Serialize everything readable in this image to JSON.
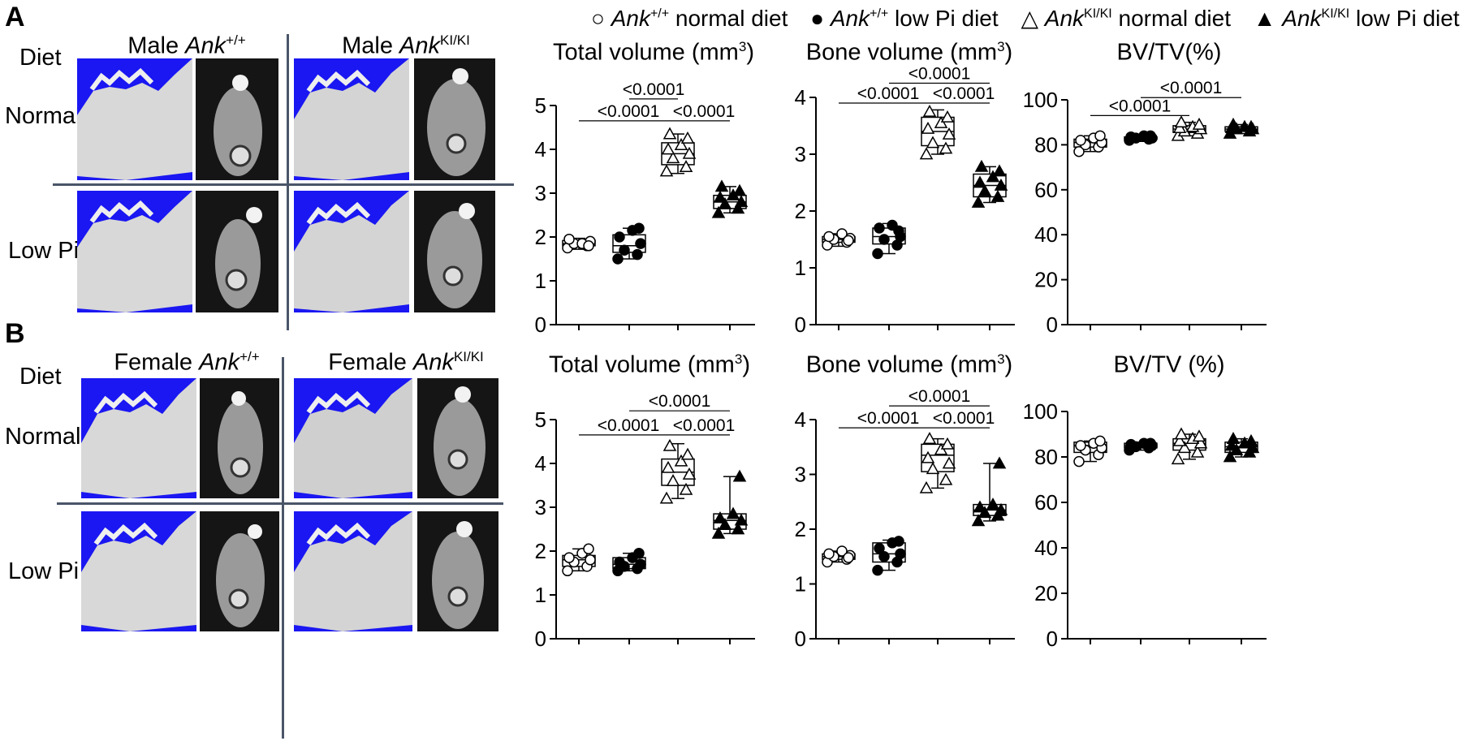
{
  "panels": [
    {
      "letter": "A",
      "diet_label": "Diet",
      "row_labels": [
        "Normal",
        "Low Pi"
      ],
      "columns": [
        {
          "prefix": "Male ",
          "gene": "Ank",
          "sup": "+/+"
        },
        {
          "prefix": "Male ",
          "gene": "Ank",
          "sup": "KI/KI"
        }
      ]
    },
    {
      "letter": "B",
      "diet_label": "Diet",
      "row_labels": [
        "Normal",
        "Low Pi"
      ],
      "columns": [
        {
          "prefix": "Female ",
          "gene": "Ank",
          "sup": "+/+"
        },
        {
          "prefix": "Female ",
          "gene": "Ank",
          "sup": "KI/KI"
        }
      ]
    }
  ],
  "legend": [
    {
      "marker": "○",
      "gene": "Ank",
      "sup": "+/+",
      "text": " normal diet"
    },
    {
      "marker": "●",
      "gene": "Ank",
      "sup": "+/+",
      "text": " low Pi diet"
    },
    {
      "marker": "△",
      "gene": "Ank",
      "sup": "KI/KI",
      "text": " normal diet"
    },
    {
      "marker": "▲",
      "gene": "Ank",
      "sup": "KI/KI",
      "text": " low Pi diet"
    }
  ],
  "chart_titles": [
    {
      "main": "Total volume (mm",
      "sup": "3",
      "end": ")"
    },
    {
      "main": "Bone volume (mm",
      "sup": "3",
      "end": ")"
    },
    {
      "main": "BV/TV(%)",
      "sup": "",
      "end": ""
    },
    {
      "main": "Total volume (mm",
      "sup": "3",
      "end": ")"
    },
    {
      "main": "Bone volume (mm",
      "sup": "3",
      "end": ")"
    },
    {
      "main": "BV/TV (%)",
      "sup": "",
      "end": ""
    }
  ],
  "colors": {
    "dark_marker": "#000000",
    "blue_background": "#1a17f2",
    "ct_background": "#151515",
    "divider": "#4a5568"
  },
  "chart_data": [
    {
      "type": "scatter",
      "panel": "A",
      "ylim": [
        0,
        5
      ],
      "yticks": [
        0,
        1,
        2,
        3,
        4,
        5
      ],
      "groups": [
        {
          "marker": "open-circle",
          "points": [
            1.75,
            1.8,
            1.85,
            1.9,
            1.95,
            1.85,
            1.8
          ],
          "box": [
            1.72,
            1.8,
            1.85,
            1.92,
            1.97
          ]
        },
        {
          "marker": "filled-circle",
          "points": [
            1.5,
            1.6,
            1.7,
            1.85,
            2.0,
            2.15,
            2.2
          ],
          "box": [
            1.5,
            1.65,
            1.8,
            2.05,
            2.2
          ]
        },
        {
          "marker": "open-triangle",
          "points": [
            3.5,
            3.6,
            3.8,
            3.9,
            4.0,
            4.1,
            4.25,
            4.35
          ],
          "box": [
            3.45,
            3.65,
            3.9,
            4.15,
            4.35
          ]
        },
        {
          "marker": "filled-triangle",
          "points": [
            2.55,
            2.65,
            2.75,
            2.8,
            2.9,
            2.95,
            3.05,
            3.15
          ],
          "box": [
            2.55,
            2.65,
            2.8,
            2.95,
            3.15
          ]
        }
      ],
      "annotations": [
        {
          "from": 0,
          "to": 2,
          "y": 4.65,
          "text": "<0.0001"
        },
        {
          "from": 2,
          "to": 3,
          "y": 4.65,
          "text": "<0.0001"
        },
        {
          "from": 1,
          "to": 2,
          "y": 5.15,
          "text": "<0.0001"
        }
      ]
    },
    {
      "type": "scatter",
      "panel": "A",
      "ylim": [
        0,
        4
      ],
      "yticks": [
        0,
        1,
        2,
        3,
        4
      ],
      "groups": [
        {
          "marker": "open-circle",
          "points": [
            1.4,
            1.45,
            1.5,
            1.52,
            1.55,
            1.6,
            1.48
          ],
          "box": [
            1.38,
            1.45,
            1.5,
            1.55,
            1.6
          ]
        },
        {
          "marker": "filled-circle",
          "points": [
            1.25,
            1.4,
            1.5,
            1.55,
            1.7,
            1.75,
            1.65
          ],
          "box": [
            1.25,
            1.42,
            1.55,
            1.7,
            1.78
          ]
        },
        {
          "marker": "open-triangle",
          "points": [
            3.0,
            3.1,
            3.2,
            3.35,
            3.45,
            3.55,
            3.65,
            3.75
          ],
          "box": [
            3.0,
            3.15,
            3.4,
            3.65,
            3.78
          ]
        },
        {
          "marker": "filled-triangle",
          "points": [
            2.15,
            2.25,
            2.35,
            2.45,
            2.5,
            2.6,
            2.7,
            2.78
          ],
          "box": [
            2.15,
            2.25,
            2.45,
            2.65,
            2.78
          ]
        }
      ],
      "annotations": [
        {
          "from": 0,
          "to": 2,
          "y": 3.9,
          "text": "<0.0001"
        },
        {
          "from": 2,
          "to": 3,
          "y": 3.9,
          "text": "<0.0001"
        },
        {
          "from": 1,
          "to": 3,
          "y": 4.25,
          "text": "<0.0001"
        }
      ]
    },
    {
      "type": "scatter",
      "panel": "A",
      "ylim": [
        0,
        100
      ],
      "yticks": [
        0,
        20,
        40,
        60,
        80,
        100
      ],
      "groups": [
        {
          "marker": "open-circle",
          "points": [
            77,
            79,
            80,
            81,
            82,
            83,
            84
          ],
          "box": [
            77,
            79,
            81,
            82.5,
            84
          ]
        },
        {
          "marker": "filled-circle",
          "points": [
            82,
            82.5,
            83,
            83,
            83.5,
            84,
            84
          ],
          "box": [
            81.5,
            82.5,
            83,
            83.5,
            84
          ]
        },
        {
          "marker": "open-triangle",
          "points": [
            84,
            85,
            86,
            87,
            87.5,
            88,
            89,
            90
          ],
          "box": [
            84,
            85.5,
            87,
            88.5,
            90
          ]
        },
        {
          "marker": "filled-triangle",
          "points": [
            85,
            86,
            87,
            87,
            87.5,
            88,
            88,
            89
          ],
          "box": [
            85,
            86,
            87,
            88,
            89
          ]
        }
      ],
      "annotations": [
        {
          "from": 0,
          "to": 2,
          "y": 93,
          "text": "<0.0001"
        },
        {
          "from": 1,
          "to": 3,
          "y": 101,
          "text": "<0.0001"
        }
      ]
    },
    {
      "type": "scatter",
      "panel": "B",
      "ylim": [
        0,
        5
      ],
      "yticks": [
        0,
        1,
        2,
        3,
        4,
        5
      ],
      "groups": [
        {
          "marker": "open-circle",
          "points": [
            1.55,
            1.65,
            1.75,
            1.8,
            1.85,
            1.95,
            2.05
          ],
          "box": [
            1.55,
            1.65,
            1.8,
            1.9,
            2.05
          ]
        },
        {
          "marker": "filled-circle",
          "points": [
            1.55,
            1.6,
            1.65,
            1.7,
            1.75,
            1.85,
            1.95
          ],
          "box": [
            1.55,
            1.6,
            1.7,
            1.85,
            1.95
          ]
        },
        {
          "marker": "open-triangle",
          "points": [
            3.2,
            3.4,
            3.6,
            3.75,
            3.9,
            4.05,
            4.2,
            4.4
          ],
          "box": [
            3.2,
            3.5,
            3.8,
            4.1,
            4.45
          ]
        },
        {
          "marker": "filled-triangle",
          "points": [
            2.4,
            2.5,
            2.6,
            2.7,
            2.75,
            2.85,
            3.7
          ],
          "box": [
            2.4,
            2.5,
            2.7,
            2.85,
            3.7
          ]
        }
      ],
      "annotations": [
        {
          "from": 0,
          "to": 2,
          "y": 4.65,
          "text": "<0.0001"
        },
        {
          "from": 2,
          "to": 3,
          "y": 4.65,
          "text": "<0.0001"
        },
        {
          "from": 1,
          "to": 3,
          "y": 5.2,
          "text": "<0.0001"
        }
      ]
    },
    {
      "type": "scatter",
      "panel": "B",
      "ylim": [
        0,
        4
      ],
      "yticks": [
        0,
        1,
        2,
        3,
        4
      ],
      "groups": [
        {
          "marker": "open-circle",
          "points": [
            1.4,
            1.45,
            1.5,
            1.52,
            1.55,
            1.6,
            1.48
          ],
          "box": [
            1.4,
            1.45,
            1.5,
            1.55,
            1.6
          ]
        },
        {
          "marker": "filled-circle",
          "points": [
            1.25,
            1.4,
            1.5,
            1.55,
            1.65,
            1.75,
            1.78
          ],
          "box": [
            1.25,
            1.4,
            1.55,
            1.75,
            1.8
          ]
        },
        {
          "marker": "open-triangle",
          "points": [
            2.75,
            2.9,
            3.1,
            3.2,
            3.3,
            3.45,
            3.55,
            3.65
          ],
          "box": [
            2.75,
            3.05,
            3.35,
            3.55,
            3.65
          ]
        },
        {
          "marker": "filled-triangle",
          "points": [
            2.15,
            2.25,
            2.3,
            2.35,
            2.4,
            2.45,
            3.2
          ],
          "box": [
            2.15,
            2.25,
            2.35,
            2.45,
            3.2
          ]
        }
      ],
      "annotations": [
        {
          "from": 0,
          "to": 2,
          "y": 3.85,
          "text": "<0.0001"
        },
        {
          "from": 2,
          "to": 3,
          "y": 3.85,
          "text": "<0.0001"
        },
        {
          "from": 1,
          "to": 3,
          "y": 4.25,
          "text": "<0.0001"
        }
      ]
    },
    {
      "type": "scatter",
      "panel": "B",
      "ylim": [
        0,
        100
      ],
      "yticks": [
        0,
        20,
        40,
        60,
        80,
        100
      ],
      "groups": [
        {
          "marker": "open-circle",
          "points": [
            78,
            81,
            83,
            84,
            85,
            86,
            87
          ],
          "box": [
            78,
            82,
            85,
            86.5,
            87
          ]
        },
        {
          "marker": "filled-circle",
          "points": [
            83,
            84,
            84.5,
            85,
            85.5,
            86,
            86
          ],
          "box": [
            83,
            84,
            85,
            86,
            86.5
          ]
        },
        {
          "marker": "open-triangle",
          "points": [
            79,
            82,
            84,
            86,
            87,
            88,
            89,
            90
          ],
          "box": [
            79,
            83,
            86,
            88,
            90
          ]
        },
        {
          "marker": "filled-triangle",
          "points": [
            80,
            82,
            83,
            84,
            85,
            86,
            87,
            88
          ],
          "box": [
            80,
            82,
            84.5,
            86.5,
            88
          ]
        }
      ],
      "annotations": []
    }
  ]
}
